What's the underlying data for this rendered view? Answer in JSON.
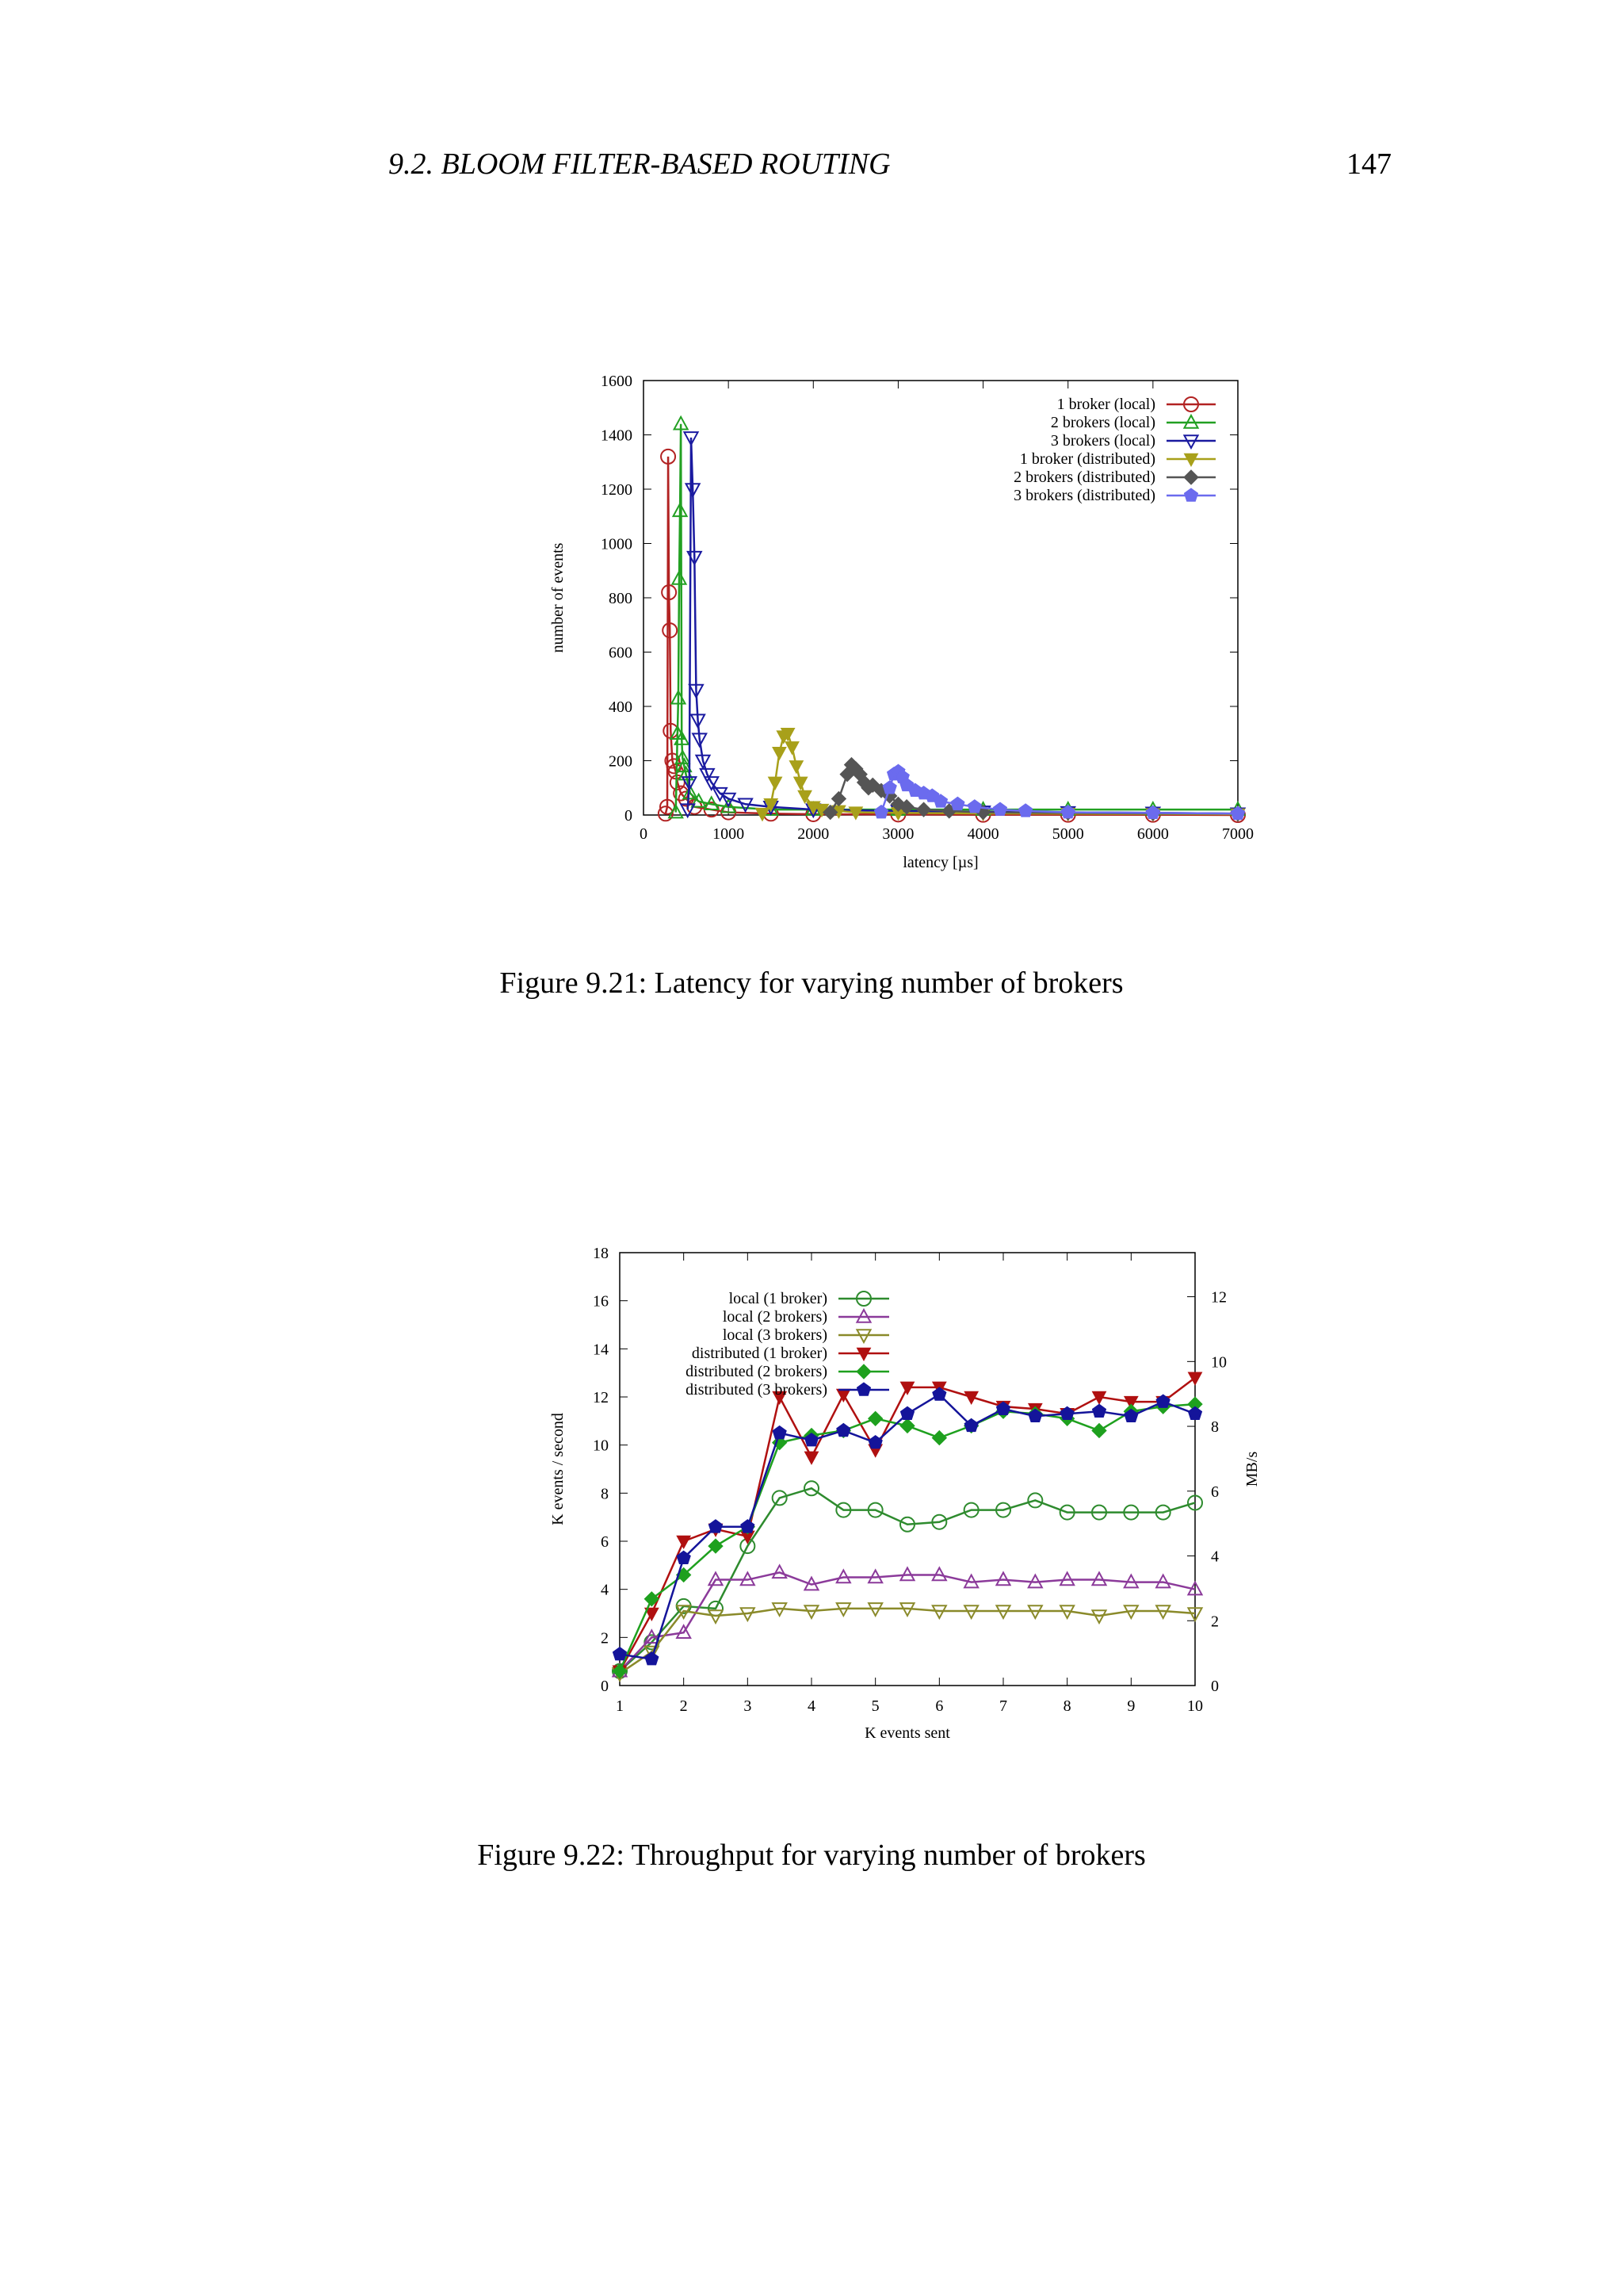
{
  "header": {
    "section_title": "9.2.  BLOOM FILTER-BASED ROUTING",
    "page_number": "147"
  },
  "figures": [
    {
      "caption": "Figure 9.21: Latency for varying number of brokers"
    },
    {
      "caption": "Figure 9.22: Throughput for varying number of brokers"
    }
  ],
  "chart_data": [
    {
      "type": "line",
      "title": "",
      "xlabel": "latency [µs]",
      "ylabel": "number of events",
      "xlim": [
        0,
        7000
      ],
      "ylim": [
        0,
        1600
      ],
      "xticks": [
        "0",
        "1000",
        "2000",
        "3000",
        "4000",
        "5000",
        "6000",
        "7000"
      ],
      "yticks": [
        "0",
        "200",
        "400",
        "600",
        "800",
        "1000",
        "1200",
        "1400",
        "1600"
      ],
      "legend_position": "top-right",
      "series": [
        {
          "name": "1 broker (local)",
          "color": "#b22222",
          "marker": "circle",
          "x": [
            260,
            280,
            290,
            300,
            310,
            320,
            340,
            360,
            380,
            400,
            440,
            500,
            600,
            800,
            1000,
            1500,
            2000,
            3000,
            4000,
            5000,
            6000,
            7000
          ],
          "y": [
            5,
            30,
            1320,
            820,
            680,
            310,
            200,
            180,
            160,
            120,
            80,
            60,
            30,
            20,
            10,
            5,
            3,
            2,
            1,
            1,
            1,
            0
          ]
        },
        {
          "name": "2 brokers (local)",
          "color": "#22a022",
          "marker": "triangle",
          "x": [
            380,
            400,
            410,
            420,
            430,
            440,
            450,
            460,
            480,
            500,
            550,
            650,
            800,
            1000,
            1500,
            2000,
            3000,
            4000,
            5000,
            6000,
            7000
          ],
          "y": [
            10,
            300,
            430,
            870,
            1120,
            1440,
            280,
            210,
            180,
            150,
            80,
            50,
            40,
            30,
            20,
            20,
            20,
            20,
            20,
            20,
            20
          ]
        },
        {
          "name": "3 brokers (local)",
          "color": "#1a1aa0",
          "marker": "triangle-down",
          "x": [
            520,
            540,
            560,
            580,
            600,
            620,
            640,
            660,
            700,
            750,
            800,
            900,
            1000,
            1200,
            1500,
            2000,
            3000,
            4000,
            5000,
            6000,
            7000
          ],
          "y": [
            20,
            120,
            1390,
            1200,
            950,
            460,
            350,
            280,
            200,
            150,
            120,
            80,
            60,
            40,
            30,
            20,
            15,
            12,
            10,
            8,
            5
          ]
        },
        {
          "name": "1 broker (distributed)",
          "color": "#a8a01a",
          "marker": "triangle-down-filled",
          "x": [
            1400,
            1500,
            1550,
            1600,
            1650,
            1700,
            1750,
            1800,
            1850,
            1900,
            2000,
            2100,
            2300,
            2500,
            3000,
            4000,
            5000,
            6000,
            7000
          ],
          "y": [
            5,
            40,
            120,
            230,
            290,
            300,
            250,
            180,
            120,
            70,
            30,
            20,
            15,
            10,
            8,
            6,
            5,
            4,
            3
          ]
        },
        {
          "name": "2 brokers (distributed)",
          "color": "#555555",
          "marker": "diamond",
          "x": [
            2200,
            2300,
            2400,
            2450,
            2500,
            2550,
            2600,
            2650,
            2700,
            2800,
            2900,
            3000,
            3100,
            3300,
            3600,
            4000,
            5000,
            6000,
            7000
          ],
          "y": [
            10,
            60,
            150,
            185,
            170,
            150,
            120,
            100,
            110,
            90,
            70,
            40,
            30,
            20,
            15,
            10,
            8,
            6,
            5
          ]
        },
        {
          "name": "3 brokers (distributed)",
          "color": "#6b6bee",
          "marker": "pentagon",
          "x": [
            2800,
            2900,
            2950,
            3000,
            3050,
            3100,
            3200,
            3300,
            3400,
            3500,
            3700,
            3900,
            4200,
            4500,
            5000,
            6000,
            7000
          ],
          "y": [
            10,
            100,
            150,
            160,
            140,
            110,
            90,
            80,
            70,
            50,
            40,
            30,
            20,
            15,
            10,
            8,
            5
          ]
        }
      ]
    },
    {
      "type": "line",
      "title": "",
      "xlabel": "K events sent",
      "ylabel": "K events / second",
      "y2label": "MB/s",
      "xlim": [
        1,
        10
      ],
      "ylim": [
        0,
        18
      ],
      "y2lim": [
        0,
        13.36
      ],
      "xticks": [
        "1",
        "2",
        "3",
        "4",
        "5",
        "6",
        "7",
        "8",
        "9",
        "10"
      ],
      "yticks": [
        "0",
        "2",
        "4",
        "6",
        "8",
        "10",
        "12",
        "14",
        "16",
        "18"
      ],
      "y2ticks": [
        "0",
        "2",
        "4",
        "6",
        "8",
        "10",
        "12"
      ],
      "legend_position": "top-left",
      "x": [
        1,
        1.5,
        2,
        2.5,
        3,
        3.5,
        4,
        4.5,
        5,
        5.5,
        6,
        6.5,
        7,
        7.5,
        8,
        8.5,
        9,
        9.5,
        10
      ],
      "series": [
        {
          "name": "local (1 broker)",
          "color": "#2e8b2e",
          "marker": "circle",
          "values": [
            0.6,
            1.8,
            3.3,
            3.2,
            5.8,
            7.8,
            8.2,
            7.3,
            7.3,
            6.7,
            6.8,
            7.3,
            7.3,
            7.7,
            7.2,
            7.2,
            7.2,
            7.2,
            7.6
          ]
        },
        {
          "name": "local (2 brokers)",
          "color": "#8b3a9a",
          "marker": "triangle",
          "values": [
            0.6,
            2.0,
            2.2,
            4.4,
            4.4,
            4.7,
            4.2,
            4.5,
            4.5,
            4.6,
            4.6,
            4.3,
            4.4,
            4.3,
            4.4,
            4.4,
            4.3,
            4.3,
            4.0
          ]
        },
        {
          "name": "local (3 brokers)",
          "color": "#8a8a2a",
          "marker": "triangle-down",
          "values": [
            0.5,
            1.4,
            3.1,
            2.9,
            3.0,
            3.2,
            3.1,
            3.2,
            3.2,
            3.2,
            3.1,
            3.1,
            3.1,
            3.1,
            3.1,
            2.9,
            3.1,
            3.1,
            3.0
          ]
        },
        {
          "name": "distributed (1 broker)",
          "color": "#b01010",
          "marker": "triangle-down-filled",
          "values": [
            0.6,
            3.0,
            6.0,
            6.5,
            6.2,
            12.0,
            9.5,
            12.1,
            9.8,
            12.4,
            12.4,
            12.0,
            11.6,
            11.5,
            11.3,
            12.0,
            11.8,
            11.8,
            12.8
          ]
        },
        {
          "name": "distributed (2 brokers)",
          "color": "#1ea01e",
          "marker": "diamond",
          "values": [
            0.6,
            3.6,
            4.6,
            5.8,
            6.6,
            10.1,
            10.4,
            10.6,
            11.1,
            10.8,
            10.3,
            10.8,
            11.4,
            11.3,
            11.1,
            10.6,
            11.4,
            11.6,
            11.7
          ]
        },
        {
          "name": "distributed (3 brokers)",
          "color": "#14149a",
          "marker": "pentagon",
          "values": [
            1.3,
            1.1,
            5.3,
            6.6,
            6.6,
            10.5,
            10.2,
            10.6,
            10.1,
            11.3,
            12.1,
            10.8,
            11.5,
            11.2,
            11.3,
            11.4,
            11.2,
            11.8,
            11.3
          ]
        }
      ]
    }
  ]
}
